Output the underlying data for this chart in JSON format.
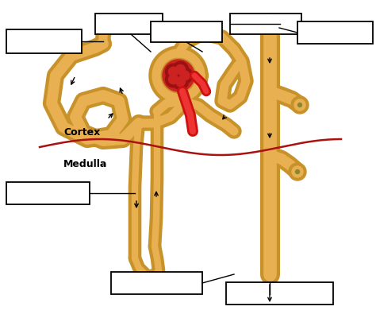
{
  "bg_color": "#ffffff",
  "cout": "#C8922A",
  "cin": "#E8B050",
  "glom_color": "#CC2222",
  "glom_dark": "#991111",
  "red_vessel": "#CC1111",
  "red_vessel_light": "#EE3333",
  "cortex_line_color": "#AA1111",
  "cortex_label": "Cortex",
  "medulla_label": "Medulla",
  "figsize": [
    4.74,
    4.05
  ],
  "dpi": 100
}
